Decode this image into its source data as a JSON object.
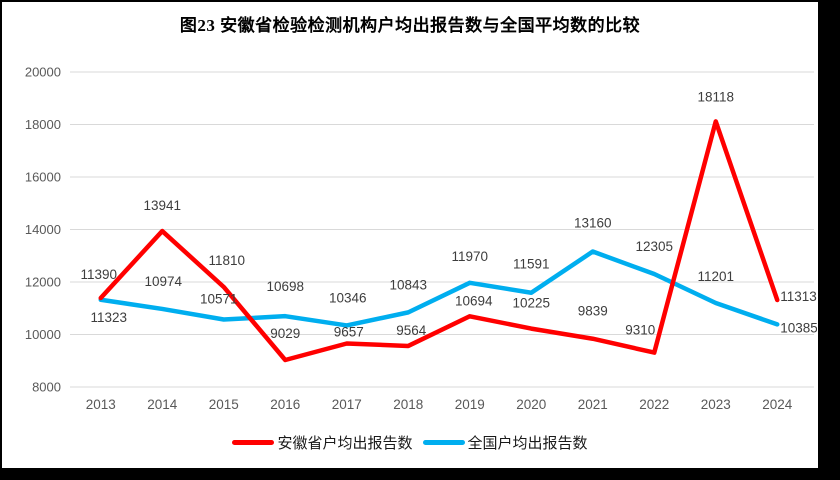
{
  "title": "图23 安徽省检验检测机构户均出报告数与全国平均数的比较",
  "chart_data": {
    "type": "line",
    "title": "图23 安徽省检验检测机构户均出报告数与全国平均数的比较",
    "x": [
      "2013",
      "2014",
      "2015",
      "2016",
      "2017",
      "2018",
      "2019",
      "2020",
      "2021",
      "2022",
      "2023",
      "2024"
    ],
    "series": [
      {
        "name": "安徽省户均出报告数",
        "color": "#ff0000",
        "values": [
          11390,
          13941,
          11810,
          9029,
          9657,
          9564,
          10694,
          10225,
          9839,
          9310,
          18118,
          11313
        ]
      },
      {
        "name": "全国户均出报告数",
        "color": "#00aeef",
        "values": [
          11323,
          10974,
          10571,
          10698,
          10346,
          10843,
          11970,
          11591,
          13160,
          12305,
          11201,
          10385
        ]
      }
    ],
    "xlabel": "",
    "ylabel": "",
    "ylim": [
      8000,
      20000
    ],
    "yticks": [
      8000,
      10000,
      12000,
      14000,
      16000,
      18000,
      20000
    ],
    "grid": "horizontal",
    "gridline_color": "#d9d9d9",
    "data_labels": true,
    "legend_position": "bottom",
    "plot": {
      "x0": 68,
      "x1": 806,
      "gridX1": 812,
      "yTop": 70,
      "yBot": 385
    },
    "label_offsets": [
      [
        [
          -2,
          -19
        ],
        [
          0,
          -21
        ],
        [
          3,
          -22
        ],
        [
          0,
          -22
        ],
        [
          2,
          -7
        ],
        [
          3,
          -11
        ],
        [
          4,
          -11
        ],
        [
          0,
          -21
        ],
        [
          0,
          -23
        ],
        [
          -14,
          -18
        ],
        [
          0,
          -20
        ],
        [
          3,
          1,
          "start"
        ]
      ],
      [
        [
          8,
          22
        ],
        [
          1,
          -23
        ],
        [
          -5,
          -16
        ],
        [
          0,
          -25
        ],
        [
          1,
          -23
        ],
        [
          0,
          -23
        ],
        [
          0,
          -22
        ],
        [
          0,
          -24
        ],
        [
          0,
          -24
        ],
        [
          0,
          -23
        ],
        [
          0,
          -22
        ],
        [
          3,
          8,
          "start"
        ]
      ]
    ]
  }
}
